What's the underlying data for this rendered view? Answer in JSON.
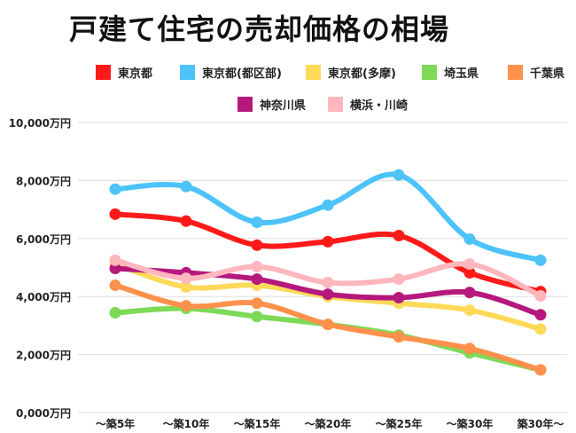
{
  "chart_data": {
    "type": "line",
    "title": "戸建て住宅の売却価格の相場",
    "categories": [
      "～築5年",
      "～築10年",
      "～築15年",
      "～築20年",
      "～築25年",
      "～築30年",
      "築30年～"
    ],
    "y_ticks": [
      "0,000万円",
      "2,000万円",
      "4,000万円",
      "6,000万円",
      "8,000万円",
      "10,000万円"
    ],
    "ylim": [
      0,
      10000
    ],
    "unit": "万円",
    "grid": true,
    "legend_position": "top",
    "series": [
      {
        "name": "東京都",
        "color": "#ff1a1a",
        "values": [
          6840,
          6600,
          5770,
          5890,
          6100,
          4820,
          4170
        ]
      },
      {
        "name": "東京都(都区部)",
        "color": "#4dc3fa",
        "values": [
          7700,
          7790,
          6560,
          7150,
          8190,
          5980,
          5250
        ]
      },
      {
        "name": "東京都(多摩)",
        "color": "#ffd95a",
        "values": [
          5120,
          4330,
          4390,
          4000,
          3770,
          3530,
          2880
        ]
      },
      {
        "name": "埼玉県",
        "color": "#7ed957",
        "values": [
          3440,
          3590,
          3310,
          3040,
          2670,
          2060,
          1470
        ]
      },
      {
        "name": "千葉県",
        "color": "#ff914d",
        "values": [
          4390,
          3680,
          3770,
          3040,
          2610,
          2210,
          1470
        ]
      },
      {
        "name": "神奈川県",
        "color": "#b5197d",
        "values": [
          4970,
          4820,
          4600,
          4080,
          3960,
          4140,
          3370
        ]
      },
      {
        "name": "横浜・川崎",
        "color": "#ffb6bc",
        "values": [
          5250,
          4630,
          5030,
          4480,
          4600,
          5120,
          4020
        ]
      }
    ]
  }
}
